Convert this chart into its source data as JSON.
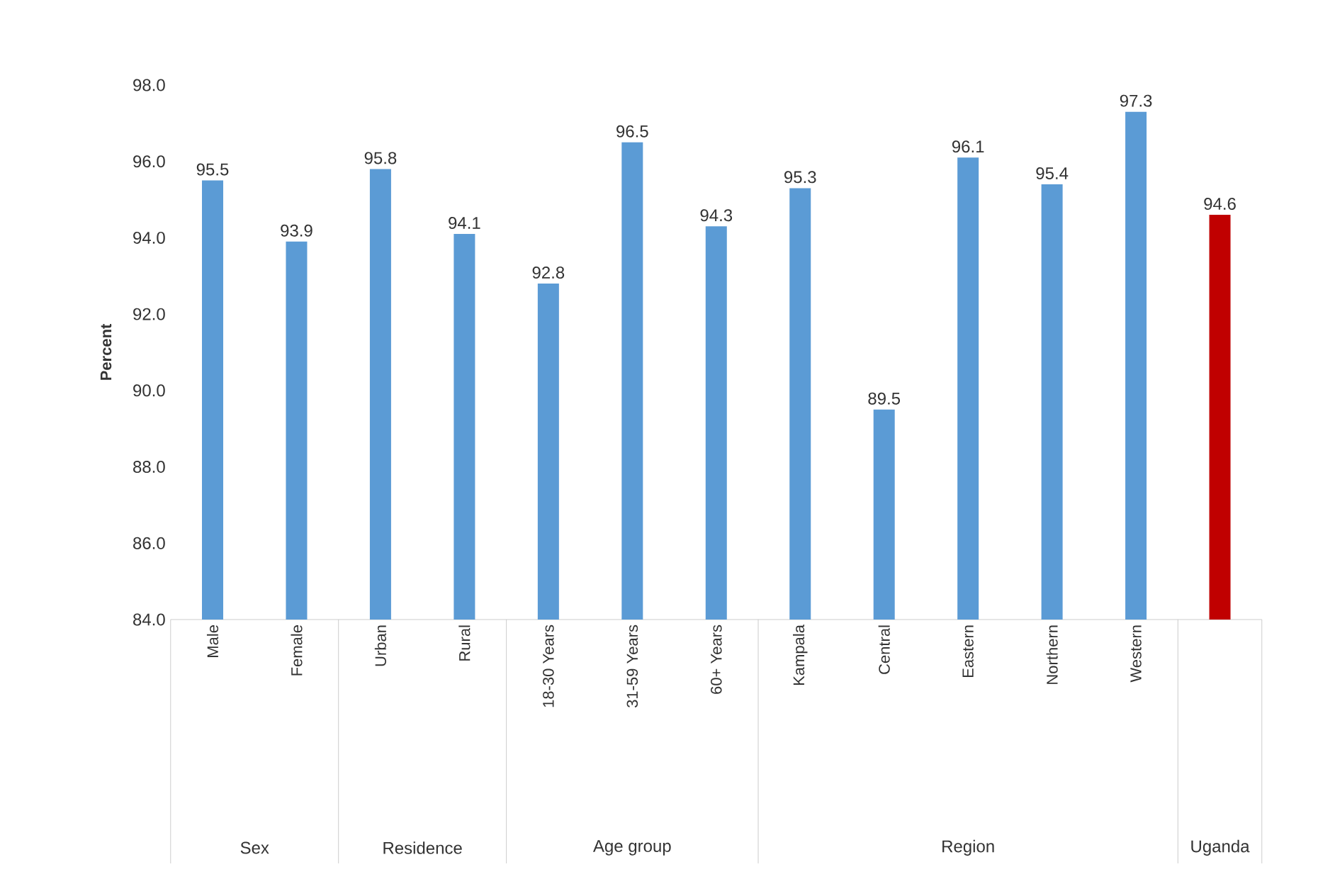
{
  "chart_data": {
    "type": "bar",
    "ylabel": "Percent",
    "categories": [
      "Male",
      "Female",
      "Urban",
      "Rural",
      "18-30 Years",
      "31-59 Years",
      "60+ Years",
      "Kampala",
      "Central",
      "Eastern",
      "Northern",
      "Western",
      null
    ],
    "values": [
      95.5,
      93.9,
      95.8,
      94.1,
      92.8,
      96.5,
      94.3,
      95.3,
      89.5,
      96.1,
      95.4,
      97.3,
      94.6
    ],
    "colors": [
      "#5b9bd5",
      "#5b9bd5",
      "#5b9bd5",
      "#5b9bd5",
      "#5b9bd5",
      "#5b9bd5",
      "#5b9bd5",
      "#5b9bd5",
      "#5b9bd5",
      "#5b9bd5",
      "#5b9bd5",
      "#5b9bd5",
      "#c00000"
    ],
    "ylim": [
      84,
      98
    ],
    "yticks": [
      {
        "value": 84,
        "label": "84.0"
      },
      {
        "value": 86,
        "label": "86.0"
      },
      {
        "value": 88,
        "label": "88.0"
      },
      {
        "value": 90,
        "label": "90.0"
      },
      {
        "value": 92,
        "label": "92.0"
      },
      {
        "value": 94,
        "label": "94.0"
      },
      {
        "value": 96,
        "label": "96.0"
      },
      {
        "value": 98,
        "label": "98.0"
      }
    ],
    "data_labels": true,
    "grid": false,
    "annotations": [
      "Sex",
      "Residence",
      "Age group",
      "Region",
      "Uganda"
    ]
  }
}
